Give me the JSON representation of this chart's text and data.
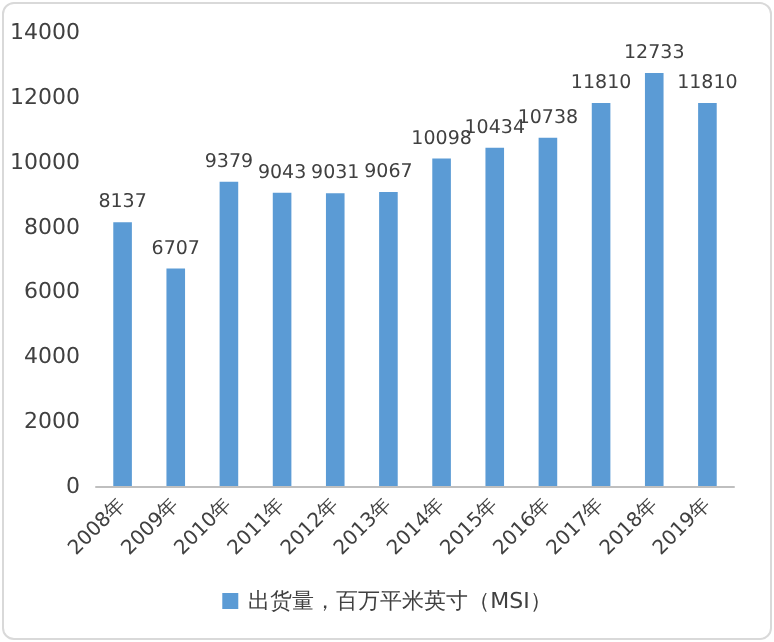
{
  "chart_data": {
    "type": "bar",
    "categories": [
      "2008年",
      "2009年",
      "2010年",
      "2011年",
      "2012年",
      "2013年",
      "2014年",
      "2015年",
      "2016年",
      "2017年",
      "2018年",
      "2019年"
    ],
    "series": [
      {
        "name": "出货量，百万平米英寸（MSI）",
        "color": "#5b9bd5",
        "values": [
          8137,
          6707,
          9379,
          9043,
          9031,
          9067,
          10098,
          10434,
          10738,
          11810,
          12733,
          11810
        ]
      }
    ],
    "ylim": [
      0,
      14000
    ],
    "yticks": [
      0,
      2000,
      4000,
      6000,
      8000,
      10000,
      12000,
      14000
    ],
    "grid": false,
    "legend": "bottom",
    "data_labels": true
  }
}
